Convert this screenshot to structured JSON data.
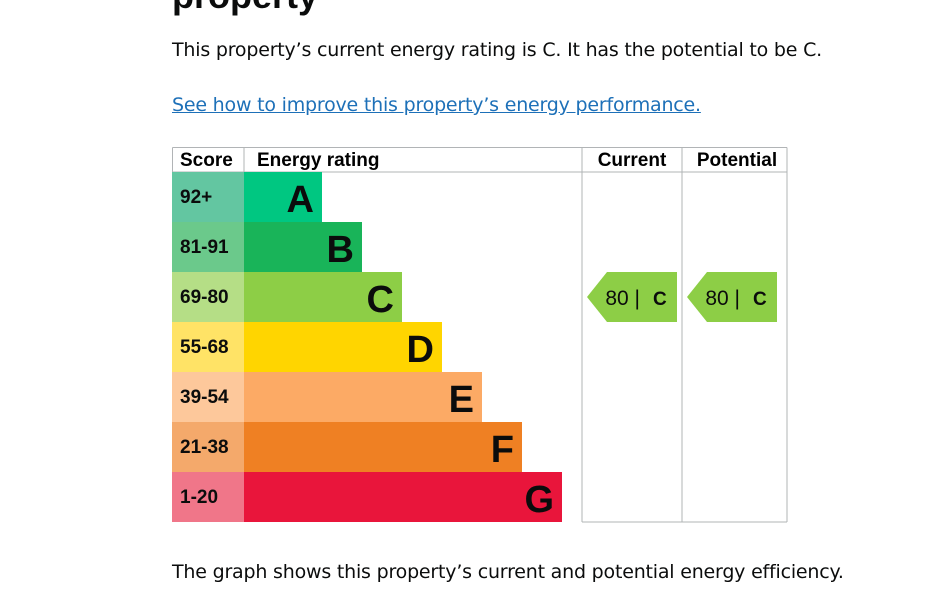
{
  "page": {
    "heading_fragment": "property",
    "summary": "This property’s current energy rating is C. It has the potential to be C.",
    "improve_link": "See how to improve this property’s energy performance.",
    "footer": "The graph shows this property’s current and potential energy efficiency."
  },
  "chart_data": {
    "type": "bar",
    "headers": {
      "score": "Score",
      "rating": "Energy rating",
      "current": "Current",
      "potential": "Potential"
    },
    "bands": [
      {
        "letter": "A",
        "score": "92+",
        "color": "#008054",
        "score_bg": "#63c6a1",
        "bar_color": "#00c781"
      },
      {
        "letter": "B",
        "score": "81-91",
        "color": "#19b459",
        "score_bg": "#6bc98b",
        "bar_color": "#19b459"
      },
      {
        "letter": "C",
        "score": "69-80",
        "color": "#8dce46",
        "score_bg": "#b5de86",
        "bar_color": "#8dce46"
      },
      {
        "letter": "D",
        "score": "55-68",
        "color": "#ffd500",
        "score_bg": "#ffe366",
        "bar_color": "#ffd500"
      },
      {
        "letter": "E",
        "score": "39-54",
        "color": "#fcaa65",
        "score_bg": "#fdc89b",
        "bar_color": "#fcaa65"
      },
      {
        "letter": "F",
        "score": "21-38",
        "color": "#ef8023",
        "score_bg": "#f4a96b",
        "bar_color": "#ef8023"
      },
      {
        "letter": "G",
        "score": "1-20",
        "color": "#e9153b",
        "score_bg": "#f07689",
        "bar_color": "#e9153b"
      }
    ],
    "current": {
      "value": 80,
      "band": "C",
      "label": "80 |",
      "letter": "C"
    },
    "potential": {
      "value": 80,
      "band": "C",
      "label": "80 |",
      "letter": "C"
    }
  }
}
